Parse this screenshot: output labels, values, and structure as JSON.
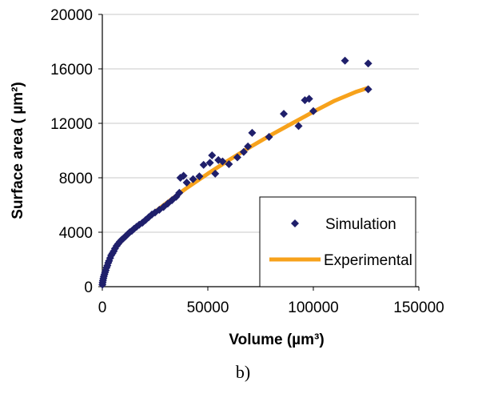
{
  "chart_data": {
    "type": "scatter",
    "xlabel": "Volume (µm³)",
    "ylabel": "Surface area ( µm²)",
    "xlim": [
      0,
      150000
    ],
    "ylim": [
      0,
      20000
    ],
    "xticks": [
      "0",
      "50000",
      "100000",
      "150000"
    ],
    "yticks": [
      "0",
      "4000",
      "8000",
      "12000",
      "16000",
      "20000"
    ],
    "grid": "horizontal",
    "legend_position": "bottom-right",
    "series": [
      {
        "name": "Simulation",
        "type": "scatter",
        "marker": "diamond",
        "color": "#1f1f6b",
        "points": [
          [
            50,
            150
          ],
          [
            150,
            300
          ],
          [
            300,
            450
          ],
          [
            500,
            600
          ],
          [
            700,
            750
          ],
          [
            1000,
            900
          ],
          [
            1300,
            1050
          ],
          [
            1600,
            1200
          ],
          [
            2000,
            1400
          ],
          [
            2400,
            1550
          ],
          [
            2800,
            1750
          ],
          [
            3200,
            1900
          ],
          [
            3700,
            2100
          ],
          [
            4200,
            2300
          ],
          [
            4800,
            2450
          ],
          [
            5400,
            2600
          ],
          [
            6000,
            2800
          ],
          [
            6800,
            3000
          ],
          [
            7500,
            3150
          ],
          [
            8300,
            3300
          ],
          [
            9200,
            3450
          ],
          [
            10000,
            3550
          ],
          [
            11000,
            3700
          ],
          [
            12000,
            3850
          ],
          [
            13000,
            4000
          ],
          [
            14000,
            4100
          ],
          [
            15000,
            4250
          ],
          [
            16200,
            4400
          ],
          [
            17500,
            4550
          ],
          [
            19000,
            4700
          ],
          [
            20500,
            4900
          ],
          [
            22000,
            5100
          ],
          [
            23500,
            5300
          ],
          [
            25000,
            5450
          ],
          [
            27000,
            5650
          ],
          [
            29000,
            5850
          ],
          [
            31000,
            6100
          ],
          [
            33000,
            6350
          ],
          [
            35000,
            6600
          ],
          [
            36500,
            6900
          ],
          [
            37000,
            8000
          ],
          [
            38500,
            8150
          ],
          [
            40000,
            7650
          ],
          [
            43000,
            7900
          ],
          [
            46000,
            8100
          ],
          [
            48000,
            8950
          ],
          [
            51000,
            9100
          ],
          [
            52000,
            9650
          ],
          [
            53500,
            8300
          ],
          [
            55000,
            9300
          ],
          [
            57000,
            9200
          ],
          [
            60000,
            9000
          ],
          [
            64000,
            9500
          ],
          [
            67000,
            9900
          ],
          [
            69000,
            10300
          ],
          [
            71000,
            11300
          ],
          [
            79000,
            11000
          ],
          [
            86000,
            12700
          ],
          [
            93000,
            11800
          ],
          [
            96000,
            13700
          ],
          [
            98000,
            13800
          ],
          [
            100000,
            12900
          ],
          [
            115000,
            16600
          ],
          [
            126000,
            16400
          ],
          [
            126000,
            14500
          ]
        ]
      },
      {
        "name": "Experimental",
        "type": "line",
        "color": "#f7a21b",
        "points": [
          [
            300,
            600
          ],
          [
            1000,
            1100
          ],
          [
            2500,
            1800
          ],
          [
            5000,
            2600
          ],
          [
            10000,
            3500
          ],
          [
            15000,
            4250
          ],
          [
            20000,
            4900
          ],
          [
            30000,
            6100
          ],
          [
            40000,
            7250
          ],
          [
            50000,
            8300
          ],
          [
            60000,
            9300
          ],
          [
            70000,
            10250
          ],
          [
            80000,
            11150
          ],
          [
            90000,
            12000
          ],
          [
            100000,
            12850
          ],
          [
            110000,
            13650
          ],
          [
            120000,
            14300
          ],
          [
            126000,
            14600
          ]
        ]
      }
    ],
    "caption": "b)"
  }
}
